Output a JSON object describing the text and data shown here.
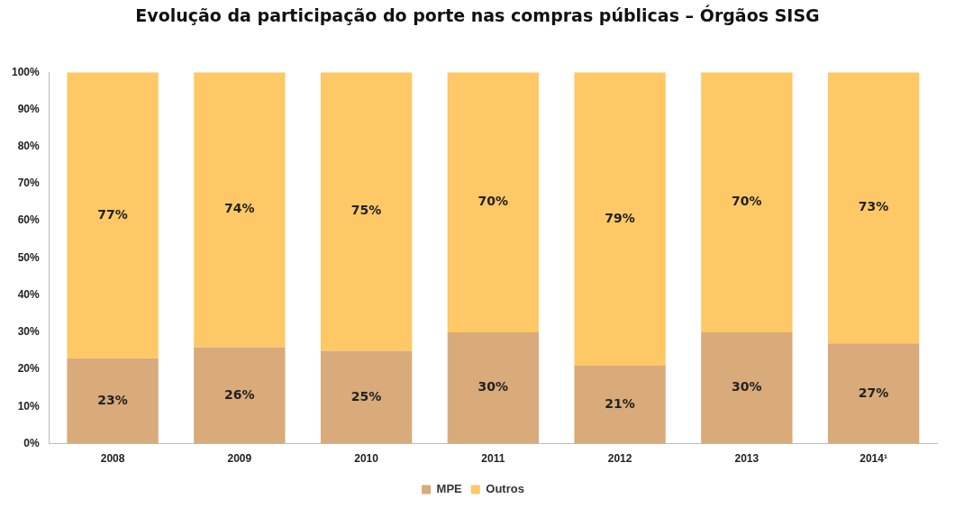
{
  "chart_data": {
    "type": "bar",
    "title": "Evolução da participação do porte nas compras públicas – Órgãos SISG",
    "categories": [
      "2008",
      "2009",
      "2010",
      "2011",
      "2012",
      "2013",
      "2014¹"
    ],
    "stacked": true,
    "legend": "bottom",
    "grid": false,
    "ylim": [
      0,
      100
    ],
    "yticks": [
      {
        "value": 0,
        "label": "0%"
      },
      {
        "value": 10,
        "label": "10%"
      },
      {
        "value": 20,
        "label": "20%"
      },
      {
        "value": 30,
        "label": "30%"
      },
      {
        "value": 40,
        "label": "40%"
      },
      {
        "value": 50,
        "label": "50%"
      },
      {
        "value": 60,
        "label": "60%"
      },
      {
        "value": 70,
        "label": "70%"
      },
      {
        "value": 80,
        "label": "80%"
      },
      {
        "value": 90,
        "label": "90%"
      },
      {
        "value": 100,
        "label": "100%"
      }
    ],
    "series": [
      {
        "name": "MPE",
        "color": "#d9aa7a",
        "values": [
          23,
          26,
          25,
          30,
          21,
          30,
          27
        ],
        "value_labels": [
          "23%",
          "26%",
          "25%",
          "30%",
          "21%",
          "30%",
          "27%"
        ]
      },
      {
        "name": "Outros",
        "color": "#fec866",
        "values": [
          77,
          74,
          75,
          70,
          79,
          70,
          73
        ],
        "value_labels": [
          "77%",
          "74%",
          "75%",
          "70%",
          "79%",
          "70%",
          "73%"
        ]
      }
    ]
  }
}
